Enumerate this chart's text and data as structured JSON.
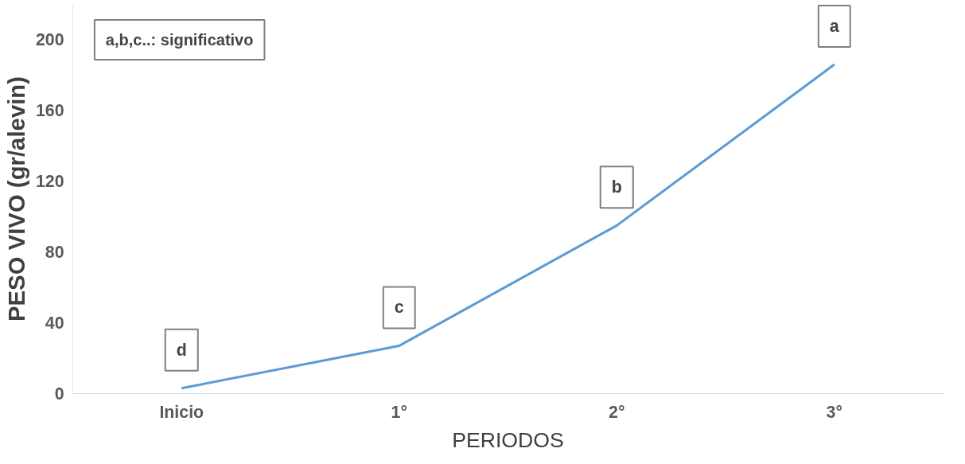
{
  "chart_data": {
    "type": "line",
    "xlabel": "PERIODOS",
    "ylabel": "PESO VIVO (gr/alevin)",
    "categories": [
      "Inicio",
      "1°",
      "2°",
      "3°"
    ],
    "series": [
      {
        "color": "#5b9bd5",
        "values": [
          3,
          27,
          95,
          186
        ]
      }
    ],
    "ylim": [
      0,
      220
    ],
    "yticks": [
      0,
      40,
      80,
      120,
      160,
      200
    ],
    "grid": false,
    "marker": "none",
    "annotations": [
      "a,b,c..: significativo",
      "d",
      "c",
      "b",
      "a"
    ]
  }
}
